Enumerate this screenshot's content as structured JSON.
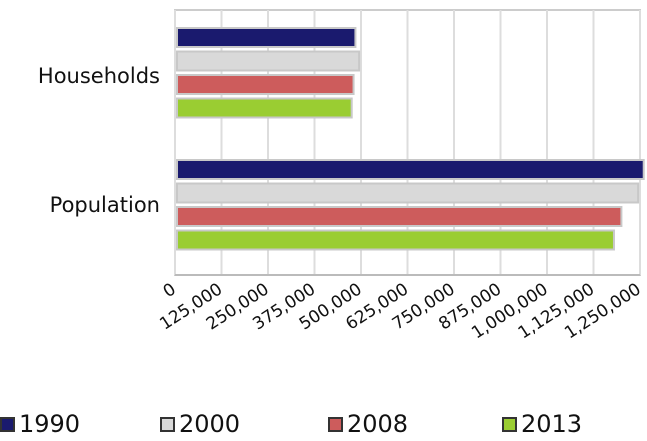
{
  "chart_data": {
    "type": "bar",
    "orientation": "horizontal",
    "categories": [
      "Households",
      "Population"
    ],
    "series": [
      {
        "name": "1990",
        "color": "#1a1a6e",
        "values": [
          485000,
          1260000
        ]
      },
      {
        "name": "2000",
        "color": "#d9d9d9",
        "values": [
          495000,
          1245000
        ]
      },
      {
        "name": "2008",
        "color": "#cd5c5c",
        "values": [
          480000,
          1200000
        ]
      },
      {
        "name": "2013",
        "color": "#9acd32",
        "values": [
          475000,
          1180000
        ]
      }
    ],
    "xlim": [
      0,
      1250000
    ],
    "x_ticks": [
      "0",
      "125,000",
      "250,000",
      "375,000",
      "500,000",
      "625,000",
      "750,000",
      "875,000",
      "1,000,000",
      "1,125,000",
      "1,250,000"
    ],
    "grid": true,
    "legend_position": "bottom",
    "title": "",
    "xlabel": "",
    "ylabel": ""
  }
}
